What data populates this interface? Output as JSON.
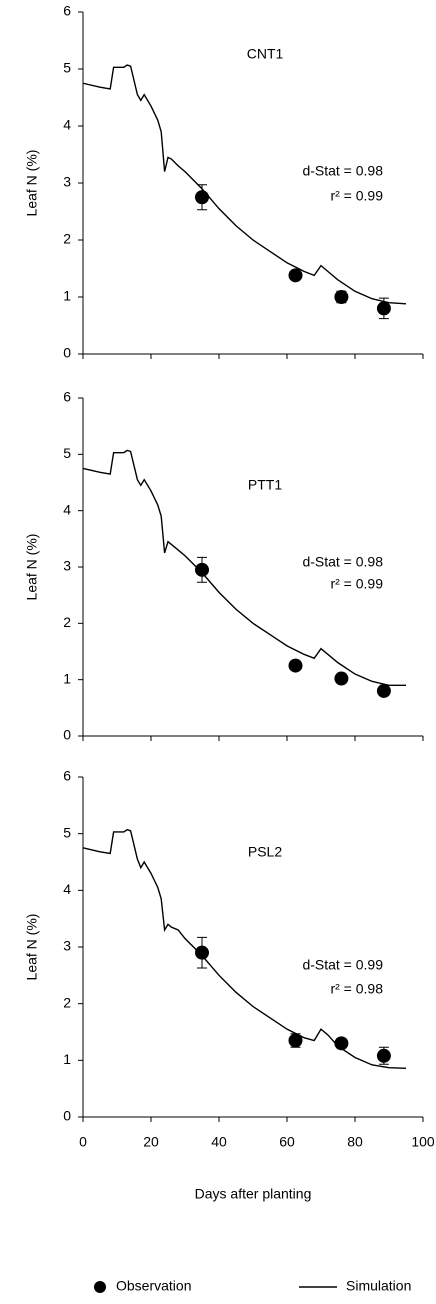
{
  "chart_data": [
    {
      "type": "line",
      "ylabel": "Leaf N (%)",
      "label": "CNT1",
      "stats": [
        "d-Stat = 0.98",
        "r² = 0.99"
      ],
      "xlim": [
        0,
        100
      ],
      "xticks": [
        0,
        20,
        40,
        60,
        80,
        100
      ],
      "xtick_labels": false,
      "ylim": [
        0,
        6
      ],
      "yticks": [
        0,
        1,
        2,
        3,
        4,
        5,
        6
      ],
      "series": [
        {
          "kind": "line",
          "color": "#000000",
          "x": [
            0,
            5,
            8,
            9,
            12,
            13,
            14,
            16,
            17,
            18,
            20,
            22,
            23,
            24,
            25,
            26,
            28,
            30,
            35,
            40,
            45,
            50,
            55,
            60,
            65,
            68,
            70,
            72,
            75,
            80,
            85,
            90,
            95
          ],
          "values": [
            4.75,
            4.68,
            4.65,
            5.03,
            5.03,
            5.07,
            5.05,
            4.55,
            4.45,
            4.55,
            4.35,
            4.1,
            3.9,
            3.2,
            3.45,
            3.42,
            3.3,
            3.2,
            2.9,
            2.55,
            2.25,
            2.0,
            1.8,
            1.6,
            1.45,
            1.38,
            1.55,
            1.45,
            1.3,
            1.1,
            0.97,
            0.9,
            0.88
          ]
        },
        {
          "kind": "points",
          "color": "#000000",
          "x": [
            35,
            62.5,
            76,
            88.5
          ],
          "values": [
            2.75,
            1.38,
            1.0,
            0.8
          ],
          "errors": [
            0.22,
            0.06,
            0.1,
            0.18
          ]
        }
      ]
    },
    {
      "type": "line",
      "ylabel": "Leaf N (%)",
      "label": "PTT1",
      "stats": [
        "d-Stat = 0.98",
        "r² = 0.99"
      ],
      "xlim": [
        0,
        100
      ],
      "xticks": [
        0,
        20,
        40,
        60,
        80,
        100
      ],
      "xtick_labels": false,
      "ylim": [
        0,
        6
      ],
      "yticks": [
        0,
        1,
        2,
        3,
        4,
        5,
        6
      ],
      "series": [
        {
          "kind": "line",
          "color": "#000000",
          "x": [
            0,
            5,
            8,
            9,
            12,
            13,
            14,
            16,
            17,
            18,
            20,
            22,
            23,
            24,
            25,
            26,
            28,
            30,
            35,
            40,
            45,
            50,
            55,
            60,
            65,
            68,
            70,
            72,
            75,
            80,
            85,
            90,
            95
          ],
          "values": [
            4.75,
            4.68,
            4.65,
            5.03,
            5.03,
            5.07,
            5.05,
            4.55,
            4.45,
            4.55,
            4.35,
            4.1,
            3.9,
            3.25,
            3.45,
            3.4,
            3.3,
            3.2,
            2.9,
            2.55,
            2.25,
            2.0,
            1.8,
            1.6,
            1.45,
            1.38,
            1.55,
            1.45,
            1.3,
            1.1,
            0.97,
            0.9,
            0.9
          ]
        },
        {
          "kind": "points",
          "color": "#000000",
          "x": [
            35,
            62.5,
            76,
            88.5
          ],
          "values": [
            2.95,
            1.25,
            1.02,
            0.8
          ],
          "errors": [
            0.22,
            0.04,
            0.04,
            0.05
          ]
        }
      ]
    },
    {
      "type": "line",
      "ylabel": "Leaf N (%)",
      "xlabel": "Days after planting",
      "label": "PSL2",
      "stats": [
        "d-Stat = 0.99",
        "r² = 0.98"
      ],
      "xlim": [
        0,
        100
      ],
      "xticks": [
        0,
        20,
        40,
        60,
        80,
        100
      ],
      "xtick_labels": true,
      "ylim": [
        0,
        6
      ],
      "yticks": [
        0,
        1,
        2,
        3,
        4,
        5,
        6
      ],
      "series": [
        {
          "kind": "points",
          "name": "Observation",
          "color": "#000000",
          "x": [
            35,
            62.5,
            76,
            88.5
          ],
          "values": [
            2.9,
            1.35,
            1.3,
            1.08
          ],
          "errors": [
            0.27,
            0.12,
            0.08,
            0.15
          ]
        },
        {
          "kind": "line",
          "name": "Simulation",
          "color": "#000000",
          "x": [
            0,
            5,
            8,
            9,
            12,
            13,
            14,
            16,
            17,
            18,
            20,
            22,
            23,
            24,
            25,
            26,
            28,
            30,
            35,
            40,
            45,
            50,
            55,
            60,
            65,
            68,
            70,
            72,
            75,
            80,
            85,
            90,
            95
          ],
          "values": [
            4.75,
            4.68,
            4.65,
            5.03,
            5.03,
            5.07,
            5.05,
            4.55,
            4.4,
            4.5,
            4.3,
            4.05,
            3.85,
            3.3,
            3.4,
            3.35,
            3.3,
            3.15,
            2.85,
            2.5,
            2.2,
            1.95,
            1.75,
            1.55,
            1.4,
            1.35,
            1.55,
            1.45,
            1.25,
            1.05,
            0.92,
            0.87,
            0.86
          ]
        }
      ]
    }
  ]
}
